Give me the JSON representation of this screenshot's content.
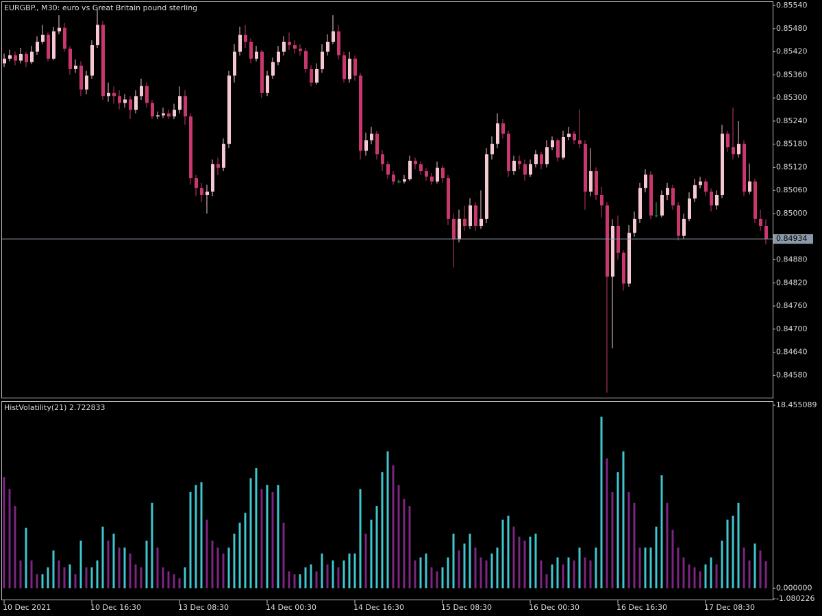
{
  "chart_data": [
    {
      "type": "candlestick",
      "title": "EURGBP., M30:  euro vs Great Britain pound sterling",
      "open": [
        0.8539,
        0.85402,
        0.85411,
        0.85397,
        0.85414,
        0.85393,
        0.8542,
        0.85446,
        0.85464,
        0.85402,
        0.85473,
        0.85482,
        0.85428,
        0.85375,
        0.85384,
        0.85322,
        0.85358,
        0.85437,
        0.8549,
        0.85305,
        0.85313,
        0.85305,
        0.85287,
        0.85296,
        0.85269,
        0.85305,
        0.85331,
        0.85287,
        0.85252,
        0.85255,
        0.8526,
        0.85252,
        0.85269,
        0.85305,
        0.85252,
        0.85092,
        0.85066,
        0.85048,
        0.85057,
        0.85128,
        0.85119,
        0.85181,
        0.85358,
        0.8542,
        0.85464,
        0.85446,
        0.85402,
        0.8542,
        0.85313,
        0.85358,
        0.85393,
        0.8542,
        0.85446,
        0.85437,
        0.85428,
        0.85422,
        0.85375,
        0.8534,
        0.85375,
        0.8542,
        0.85446,
        0.85473,
        0.85411,
        0.85349,
        0.85402,
        0.85358,
        0.85163,
        0.8519,
        0.85207,
        0.85154,
        0.85128,
        0.85101,
        0.85083,
        0.85083,
        0.85089,
        0.85137,
        0.85128,
        0.8511,
        0.85096,
        0.85083,
        0.85119,
        0.85092,
        0.84986,
        0.84933,
        0.84986,
        0.84968,
        0.85021,
        0.84968,
        0.84986,
        0.85154,
        0.85181,
        0.85234,
        0.85207,
        0.8511,
        0.85137,
        0.85128,
        0.85101,
        0.85128,
        0.85154,
        0.85128,
        0.85172,
        0.8519,
        0.85145,
        0.85199,
        0.85207,
        0.8519,
        0.85181,
        0.85057,
        0.8511,
        0.85048,
        0.85021,
        0.84836,
        0.84968,
        0.84898,
        0.84818,
        0.8495,
        0.84986,
        0.85066,
        0.85101,
        0.84995,
        0.84995,
        0.85048,
        0.85066,
        0.85021,
        0.84942,
        0.84986,
        0.85039,
        0.85074,
        0.85083,
        0.85057,
        0.85021,
        0.85048,
        0.85207,
        0.85172,
        0.85154,
        0.85181,
        0.85057,
        0.85083,
        0.84986,
        0.84968
      ],
      "high": [
        0.85415,
        0.85425,
        0.8542,
        0.8543,
        0.8542,
        0.85435,
        0.8546,
        0.8549,
        0.8547,
        0.85485,
        0.85515,
        0.85495,
        0.85435,
        0.854,
        0.85395,
        0.8537,
        0.8545,
        0.8553,
        0.855,
        0.8534,
        0.8533,
        0.8532,
        0.8531,
        0.85305,
        0.8532,
        0.8535,
        0.8534,
        0.85295,
        0.85265,
        0.85275,
        0.8527,
        0.85285,
        0.8533,
        0.8532,
        0.8526,
        0.851,
        0.8508,
        0.85075,
        0.8514,
        0.85145,
        0.85195,
        0.8537,
        0.8544,
        0.85485,
        0.8549,
        0.85455,
        0.85435,
        0.85425,
        0.8537,
        0.85405,
        0.85435,
        0.8546,
        0.8547,
        0.8545,
        0.8544,
        0.8543,
        0.85385,
        0.8539,
        0.8544,
        0.85465,
        0.85515,
        0.8549,
        0.8542,
        0.8542,
        0.8541,
        0.85365,
        0.8521,
        0.85225,
        0.85215,
        0.85165,
        0.85135,
        0.8511,
        0.85088,
        0.851,
        0.8515,
        0.85145,
        0.85135,
        0.85118,
        0.85105,
        0.85135,
        0.85125,
        0.851,
        0.85,
        0.8501,
        0.8502,
        0.8504,
        0.8503,
        0.8506,
        0.8517,
        0.852,
        0.8526,
        0.85245,
        0.85215,
        0.8515,
        0.8515,
        0.8514,
        0.8514,
        0.85165,
        0.8516,
        0.8519,
        0.852,
        0.85195,
        0.85215,
        0.85225,
        0.85215,
        0.8527,
        0.8519,
        0.8517,
        0.8512,
        0.8507,
        0.8503,
        0.84985,
        0.84995,
        0.84905,
        0.8497,
        0.85005,
        0.8508,
        0.85115,
        0.8511,
        0.8503,
        0.8506,
        0.8508,
        0.85075,
        0.8503,
        0.85,
        0.85055,
        0.8509,
        0.85095,
        0.8509,
        0.85065,
        0.8506,
        0.8523,
        0.85215,
        0.85275,
        0.8524,
        0.8519,
        0.8513,
        0.8509,
        0.8501,
        0.84985
      ],
      "low": [
        0.8538,
        0.85395,
        0.85385,
        0.8539,
        0.8538,
        0.85388,
        0.85412,
        0.8544,
        0.85395,
        0.85398,
        0.85465,
        0.8542,
        0.8536,
        0.85365,
        0.85305,
        0.8531,
        0.8535,
        0.8543,
        0.85295,
        0.8529,
        0.85285,
        0.8527,
        0.85275,
        0.85245,
        0.8526,
        0.85295,
        0.85275,
        0.85245,
        0.85245,
        0.85248,
        0.85245,
        0.85245,
        0.8526,
        0.8523,
        0.85075,
        0.85045,
        0.8503,
        0.85,
        0.85045,
        0.851,
        0.8511,
        0.8517,
        0.8534,
        0.8541,
        0.8543,
        0.8539,
        0.85395,
        0.853,
        0.85305,
        0.8535,
        0.85385,
        0.8541,
        0.85425,
        0.85415,
        0.8541,
        0.85365,
        0.8533,
        0.85335,
        0.85365,
        0.8541,
        0.8544,
        0.854,
        0.8534,
        0.8534,
        0.85345,
        0.8514,
        0.8515,
        0.8518,
        0.8514,
        0.8511,
        0.8509,
        0.85075,
        0.85078,
        0.85078,
        0.85085,
        0.85115,
        0.851,
        0.85085,
        0.85075,
        0.85078,
        0.8508,
        0.8497,
        0.8486,
        0.84925,
        0.84955,
        0.8496,
        0.84955,
        0.8496,
        0.84975,
        0.8514,
        0.8517,
        0.85195,
        0.85095,
        0.851,
        0.85115,
        0.85085,
        0.85095,
        0.8512,
        0.85115,
        0.8512,
        0.85165,
        0.85135,
        0.8514,
        0.8519,
        0.8518,
        0.8517,
        0.8501,
        0.85045,
        0.85035,
        0.8499,
        0.84535,
        0.8465,
        0.8488,
        0.848,
        0.8481,
        0.8494,
        0.84975,
        0.85055,
        0.84985,
        0.8499,
        0.8499,
        0.85035,
        0.8501,
        0.8493,
        0.84935,
        0.8498,
        0.8503,
        0.85065,
        0.85045,
        0.85005,
        0.8501,
        0.8504,
        0.8516,
        0.8514,
        0.85145,
        0.85045,
        0.8505,
        0.84975,
        0.84955,
        0.8492
      ],
      "close": [
        0.85402,
        0.85411,
        0.85397,
        0.85414,
        0.85393,
        0.8542,
        0.85446,
        0.85464,
        0.85402,
        0.85473,
        0.85482,
        0.85428,
        0.85375,
        0.85384,
        0.85322,
        0.85358,
        0.85437,
        0.8549,
        0.85305,
        0.85313,
        0.85305,
        0.85287,
        0.85296,
        0.85269,
        0.85305,
        0.85331,
        0.85287,
        0.85252,
        0.85255,
        0.8526,
        0.85252,
        0.85269,
        0.85305,
        0.85252,
        0.85092,
        0.85066,
        0.85048,
        0.85057,
        0.85128,
        0.85119,
        0.85181,
        0.85358,
        0.8542,
        0.85464,
        0.85446,
        0.85402,
        0.8542,
        0.85313,
        0.85358,
        0.85393,
        0.8542,
        0.85446,
        0.85437,
        0.85428,
        0.85422,
        0.85375,
        0.8534,
        0.85375,
        0.8542,
        0.85446,
        0.85473,
        0.85411,
        0.85349,
        0.85402,
        0.85358,
        0.85163,
        0.8519,
        0.85207,
        0.85154,
        0.85128,
        0.85101,
        0.85083,
        0.85083,
        0.85089,
        0.85137,
        0.85128,
        0.8511,
        0.85096,
        0.85083,
        0.85119,
        0.85092,
        0.84986,
        0.84933,
        0.84986,
        0.84968,
        0.85021,
        0.84968,
        0.84986,
        0.85154,
        0.85181,
        0.85234,
        0.85207,
        0.8511,
        0.85137,
        0.85128,
        0.85101,
        0.85128,
        0.85154,
        0.85128,
        0.85172,
        0.8519,
        0.85145,
        0.85199,
        0.85207,
        0.8519,
        0.85181,
        0.85057,
        0.8511,
        0.85048,
        0.85021,
        0.84836,
        0.84968,
        0.84898,
        0.84818,
        0.8495,
        0.84986,
        0.85066,
        0.85101,
        0.84995,
        0.84995,
        0.85048,
        0.85066,
        0.85021,
        0.84942,
        0.84986,
        0.85039,
        0.85074,
        0.85083,
        0.85057,
        0.85021,
        0.85048,
        0.85207,
        0.85172,
        0.85154,
        0.85181,
        0.85057,
        0.85083,
        0.84986,
        0.84968,
        0.84934
      ],
      "up_color": "#f6c9d2",
      "down_color": "#c8376e",
      "doji_color": "#22b33a",
      "ylim": [
        0.84522,
        0.85549
      ],
      "yticks": [
        {
          "value": 0.8554,
          "label": "0.85540"
        },
        {
          "value": 0.8548,
          "label": "0.85480"
        },
        {
          "value": 0.8542,
          "label": "0.85420"
        },
        {
          "value": 0.8536,
          "label": "0.85360"
        },
        {
          "value": 0.853,
          "label": "0.85300"
        },
        {
          "value": 0.8524,
          "label": "0.85240"
        },
        {
          "value": 0.8518,
          "label": "0.85180"
        },
        {
          "value": 0.8512,
          "label": "0.85120"
        },
        {
          "value": 0.8506,
          "label": "0.85060"
        },
        {
          "value": 0.85,
          "label": "0.85000"
        },
        {
          "value": 0.8488,
          "label": "0.84880"
        },
        {
          "value": 0.8482,
          "label": "0.84820"
        },
        {
          "value": 0.8476,
          "label": "0.84760"
        },
        {
          "value": 0.847,
          "label": "0.84700"
        },
        {
          "value": 0.8464,
          "label": "0.84640"
        },
        {
          "value": 0.8458,
          "label": "0.84580"
        }
      ],
      "price_line": {
        "value": 0.84934,
        "label": "0.84934"
      }
    },
    {
      "type": "histogram",
      "title": "HistVolatility(21) 2.722833",
      "values": [
        11.2,
        10.0,
        8.3,
        2.8,
        6.1,
        2.8,
        1.4,
        1.4,
        2.1,
        3.8,
        2.8,
        2.1,
        2.4,
        1.4,
        4.8,
        2.1,
        2.1,
        2.8,
        6.2,
        4.8,
        5.5,
        4.1,
        4.1,
        3.5,
        2.4,
        2.1,
        4.8,
        8.6,
        4.1,
        2.1,
        1.7,
        1.4,
        1.0,
        2.1,
        9.7,
        10.4,
        10.7,
        6.9,
        4.8,
        4.1,
        3.5,
        4.1,
        5.5,
        6.6,
        7.6,
        11.1,
        12.1,
        10.0,
        10.4,
        9.7,
        10.4,
        6.6,
        1.7,
        1.4,
        1.4,
        2.1,
        2.4,
        1.7,
        3.5,
        2.4,
        2.8,
        2.1,
        2.8,
        3.5,
        3.5,
        10.0,
        5.5,
        6.9,
        8.3,
        11.7,
        13.8,
        12.4,
        10.4,
        9.0,
        8.3,
        2.8,
        3.1,
        3.5,
        2.1,
        1.7,
        2.1,
        3.1,
        5.5,
        3.8,
        4.5,
        5.5,
        4.1,
        3.1,
        2.8,
        3.5,
        4.1,
        6.9,
        7.3,
        6.2,
        5.2,
        4.8,
        5.2,
        5.5,
        2.8,
        1.4,
        2.4,
        3.1,
        2.4,
        3.1,
        2.8,
        4.1,
        3.1,
        2.8,
        4.1,
        17.3,
        13.1,
        9.7,
        11.7,
        13.8,
        9.7,
        8.6,
        4.1,
        4.1,
        4.1,
        6.2,
        11.4,
        8.6,
        5.9,
        4.1,
        3.1,
        2.4,
        2.1,
        1.7,
        2.4,
        3.1,
        2.4,
        4.8,
        6.9,
        7.3,
        8.6,
        4.1,
        2.8,
        4.5,
        3.8,
        2.722833
      ],
      "up_color": "#3fc6cf",
      "down_color": "#7e2583",
      "ylim": [
        -1.080226,
        18.455089
      ],
      "yticks": [
        {
          "value": -1.080226,
          "label": "-1.080226"
        },
        {
          "value": 0,
          "label": "0.000000"
        },
        {
          "value": 18.455089,
          "label": "18.455089"
        }
      ],
      "xticks": [
        {
          "value": 0,
          "label": "10 Dec 2021"
        },
        {
          "value": 16,
          "label": "10 Dec 16:30"
        },
        {
          "value": 32,
          "label": "13 Dec 08:30"
        },
        {
          "value": 48,
          "label": "14 Dec 00:30"
        },
        {
          "value": 64,
          "label": "14 Dec 16:30"
        },
        {
          "value": 80,
          "label": "15 Dec 08:30"
        },
        {
          "value": 96,
          "label": "16 Dec 00:30"
        },
        {
          "value": 112,
          "label": "16 Dec 16:30"
        },
        {
          "value": 128,
          "label": "17 Dec 08:30"
        }
      ]
    }
  ]
}
